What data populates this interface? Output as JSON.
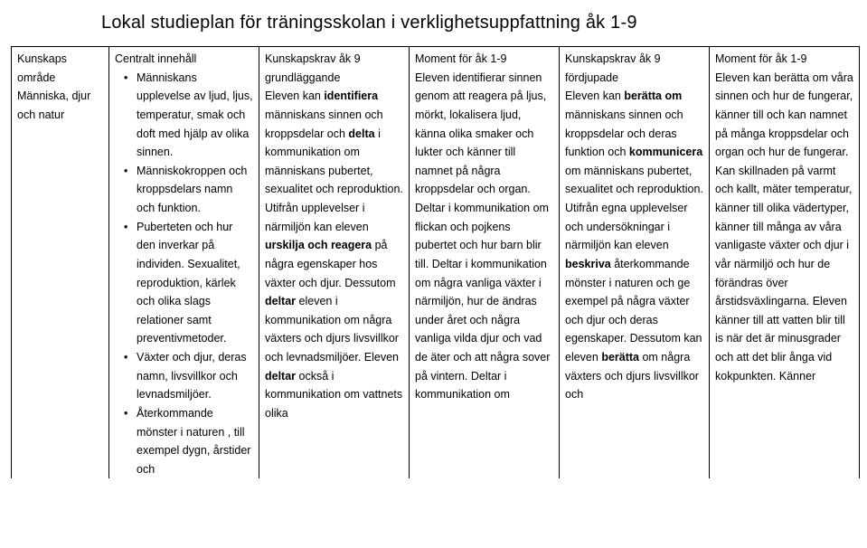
{
  "title": "Lokal studieplan för träningsskolan i verklighetsuppfattning åk 1-9",
  "headers": {
    "c0": "Kunskaps område",
    "c1": "Centralt innehåll",
    "c2": "Kunskapskrav åk 9 grundläggande",
    "c3": "Moment för åk 1-9",
    "c4": "Kunskapskrav åk 9 fördjupade",
    "c5": "Moment för åk 1-9"
  },
  "row": {
    "c0": "Människa, djur och natur",
    "c1": {
      "b1": "Människans upplevelse av ljud, ljus, temperatur, smak och doft med hjälp av olika sinnen.",
      "b2": "Människokroppen och kroppsdelars namn och funktion.",
      "b3": "Puberteten och hur den inverkar på individen. Sexualitet, reproduktion, kärlek och olika slags relationer samt preventivmetoder.",
      "b4": "Växter och djur, deras namn, livsvillkor och levnadsmiljöer.",
      "b5": "Återkommande mönster i naturen , till exempel dygn, årstider och"
    },
    "c2": {
      "t1": "Eleven kan ",
      "t2": "identifiera",
      "t3": " människans sinnen och kroppsdelar och ",
      "t4": "delta",
      "t5": " i kommunikation om människans pubertet, sexualitet och reproduktion. Utifrån upplevelser i närmiljön kan eleven ",
      "t6": "urskilja och reagera",
      "t7": " på några egenskaper hos växter och djur. Dessutom ",
      "t8": "deltar",
      "t9": " eleven i kommunikation om några växters och djurs livsvillkor och levnadsmiljöer. Eleven ",
      "t10": "deltar",
      "t11": " också i kommunikation om vattnets olika"
    },
    "c3": "Eleven identifierar sinnen genom att reagera på ljus, mörkt, lokalisera ljud, känna olika smaker och lukter och känner till namnet på några kroppsdelar och organ. Deltar i kommunikation om flickan och pojkens pubertet och hur barn blir till. Deltar i kommunikation om några vanliga växter i närmiljön, hur de ändras under året och några vanliga vilda djur och vad de äter och att några sover på vintern. Deltar i kommunikation om",
    "c4": {
      "t1": "Eleven kan ",
      "t2": "berätta om",
      "t3": " människans sinnen och kroppsdelar och deras funktion och ",
      "t4": "kommunicera",
      "t5": " om människans pubertet, sexualitet och reproduktion. Utifrån egna upplevelser och undersökningar i närmiljön kan eleven ",
      "t6": "beskriva",
      "t7": " återkommande mönster i naturen och ge exempel på några växter och djur och deras egenskaper. Dessutom kan eleven ",
      "t8": "berätta",
      "t9": " om några växters och djurs livsvillkor och"
    },
    "c5": "Eleven kan berätta om våra sinnen och hur de fungerar, känner till och kan namnet på många kroppsdelar och organ och hur de fungerar. Kan skillnaden på varmt och kallt, mäter temperatur, känner till olika vädertyper, känner till många av våra vanligaste växter och djur i vår närmiljö och hur de förändras över årstidsväxlingarna. Eleven känner till att vatten blir till is när det är minusgrader och att det blir ånga vid kokpunkten. Känner"
  }
}
